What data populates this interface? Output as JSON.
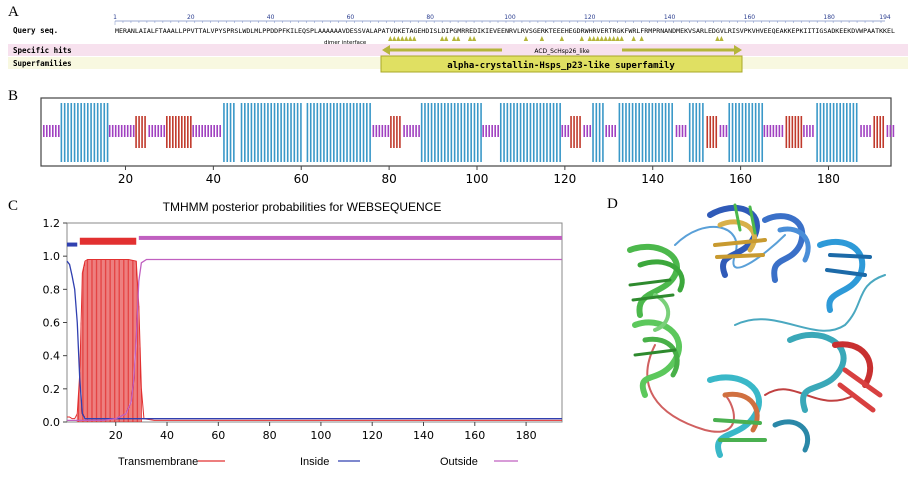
{
  "panels": {
    "a": "A",
    "b": "B",
    "c": "C",
    "d": "D"
  },
  "panel_a": {
    "query_label": "Query seq.",
    "ruler": [
      "1",
      "20",
      "40",
      "60",
      "80",
      "100",
      "120",
      "140",
      "160",
      "180",
      "194"
    ],
    "sequence": "MERANLAIALFTAAALLPPVTTALVPYSPRSLWDLMLPPDDPFKILEQSPLAAAAAAVDESSVALAPATVDKETAGEHDISLDIPGMRREDIKIEVEENRVLRVSGERKTEEEHEGDRWHRVERTRGKFWRLFRMPRNANDMEKVSARLEDGVLRISVPKVHVEEQEAKKEPKIITIGSADKEEKDVWPAATKKEL",
    "dimer_interface": "dimer interface",
    "specific_hits": "Specific hits",
    "superfamilies": "Superfamilies",
    "hit_name": "ACD_ScHsp26_like",
    "superfamily_name": "alpha-crystallin-Hsps_p23-like superfamily",
    "hits_bg": "#f7e1ee",
    "superfamilies_bg": "#f8f8e0",
    "accent": "#b5b53a"
  },
  "chart_data": [
    {
      "panel": "B",
      "type": "bar",
      "title": "",
      "xlim": [
        1,
        194
      ],
      "xticks": [
        20,
        40,
        60,
        80,
        100,
        120,
        140,
        160,
        180
      ],
      "legend": [
        {
          "name": "helix",
          "color": "#c0392b"
        },
        {
          "name": "strand",
          "color": "#3a98c8"
        },
        {
          "name": "coil",
          "color": "#a040c0"
        }
      ],
      "segments": [
        {
          "type": "coil",
          "start": 1,
          "end": 4
        },
        {
          "type": "strand",
          "start": 5,
          "end": 15
        },
        {
          "type": "coil",
          "start": 16,
          "end": 21
        },
        {
          "type": "helix",
          "start": 22,
          "end": 24
        },
        {
          "type": "coil",
          "start": 25,
          "end": 28
        },
        {
          "type": "helix",
          "start": 29,
          "end": 34
        },
        {
          "type": "coil",
          "start": 35,
          "end": 41
        },
        {
          "type": "strand",
          "start": 42,
          "end": 44
        },
        {
          "type": "strand",
          "start": 46,
          "end": 59
        },
        {
          "type": "strand",
          "start": 61,
          "end": 75
        },
        {
          "type": "coil",
          "start": 76,
          "end": 79
        },
        {
          "type": "helix",
          "start": 80,
          "end": 82
        },
        {
          "type": "coil",
          "start": 83,
          "end": 86
        },
        {
          "type": "strand",
          "start": 87,
          "end": 100
        },
        {
          "type": "coil",
          "start": 101,
          "end": 104
        },
        {
          "type": "strand",
          "start": 105,
          "end": 118
        },
        {
          "type": "coil",
          "start": 119,
          "end": 120
        },
        {
          "type": "helix",
          "start": 121,
          "end": 123
        },
        {
          "type": "coil",
          "start": 124,
          "end": 125
        },
        {
          "type": "strand",
          "start": 126,
          "end": 128
        },
        {
          "type": "coil",
          "start": 129,
          "end": 131
        },
        {
          "type": "strand",
          "start": 132,
          "end": 144
        },
        {
          "type": "coil",
          "start": 145,
          "end": 147
        },
        {
          "type": "strand",
          "start": 148,
          "end": 151
        },
        {
          "type": "helix",
          "start": 152,
          "end": 154
        },
        {
          "type": "coil",
          "start": 155,
          "end": 156
        },
        {
          "type": "strand",
          "start": 157,
          "end": 164
        },
        {
          "type": "coil",
          "start": 165,
          "end": 169
        },
        {
          "type": "helix",
          "start": 170,
          "end": 173
        },
        {
          "type": "coil",
          "start": 174,
          "end": 176
        },
        {
          "type": "strand",
          "start": 177,
          "end": 186
        },
        {
          "type": "coil",
          "start": 187,
          "end": 189
        },
        {
          "type": "helix",
          "start": 190,
          "end": 192
        },
        {
          "type": "coil",
          "start": 193,
          "end": 194
        }
      ]
    },
    {
      "panel": "C",
      "type": "line",
      "title": "TMHMM posterior probabilities for WEBSEQUENCE",
      "xlabel": "",
      "ylabel": "",
      "xlim": [
        1,
        194
      ],
      "ylim": [
        0,
        1.2
      ],
      "xticks": [
        20,
        40,
        60,
        80,
        100,
        120,
        140,
        160,
        180
      ],
      "yticks": [
        "0.0",
        "0.2",
        "0.4",
        "0.6",
        "0.8",
        "1.0",
        "1.2"
      ],
      "legend": [
        "Transmembrane",
        "Inside",
        "Outside"
      ],
      "legend_position": "bottom",
      "series": [
        {
          "name": "Transmembrane",
          "color": "#e23030",
          "x": [
            1,
            2,
            3,
            4,
            5,
            6,
            7,
            8,
            9,
            10,
            15,
            20,
            25,
            28,
            29,
            30,
            31,
            35,
            194
          ],
          "values": [
            0.03,
            0.03,
            0.02,
            0.02,
            0.05,
            0.3,
            0.9,
            0.97,
            0.98,
            0.98,
            0.98,
            0.98,
            0.98,
            0.97,
            0.7,
            0.2,
            0.02,
            0.01,
            0.01
          ]
        },
        {
          "name": "Inside",
          "color": "#3040b0",
          "x": [
            1,
            2,
            3,
            4,
            5,
            6,
            7,
            8,
            10,
            194
          ],
          "values": [
            0.97,
            0.95,
            0.88,
            0.8,
            0.6,
            0.25,
            0.05,
            0.02,
            0.02,
            0.02
          ]
        },
        {
          "name": "Outside",
          "color": "#c060c0",
          "x": [
            1,
            6,
            10,
            15,
            20,
            24,
            26,
            27,
            28,
            29,
            30,
            32,
            194
          ],
          "values": [
            0.01,
            0.01,
            0.01,
            0.01,
            0.02,
            0.05,
            0.12,
            0.25,
            0.5,
            0.85,
            0.96,
            0.98,
            0.98
          ]
        }
      ],
      "topology_bars": [
        {
          "name": "Inside",
          "start": 1,
          "end": 5,
          "y": 1.07,
          "color": "#3040b0"
        },
        {
          "name": "Transmembrane",
          "start": 6,
          "end": 28,
          "y": 1.09,
          "color": "#e23030"
        },
        {
          "name": "Outside",
          "start": 29,
          "end": 194,
          "y": 1.11,
          "color": "#c060c0"
        }
      ]
    }
  ]
}
